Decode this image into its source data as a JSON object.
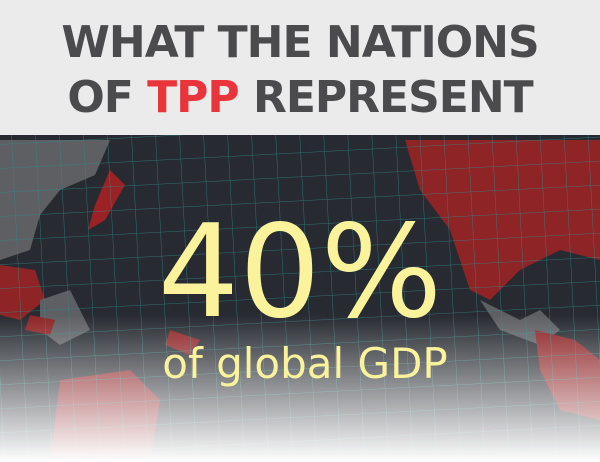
{
  "header": {
    "title": {
      "line1": "WHAT THE NATIONS",
      "line2_before": "OF",
      "line2_highlight": "TPP",
      "line2_after": "REPRESENT"
    }
  },
  "stat": {
    "value": "40%",
    "caption": "of global GDP"
  }
}
